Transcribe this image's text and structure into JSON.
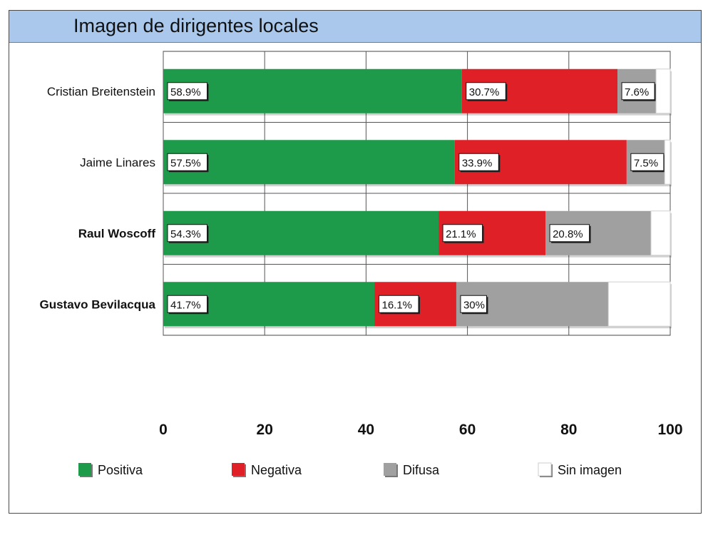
{
  "chart_data": {
    "type": "bar",
    "orientation": "horizontal",
    "stacked": true,
    "title": "Imagen de dirigentes locales",
    "categories": [
      "Cristian Breitenstein",
      "Jaime Linares",
      "Raul Woscoff",
      "Gustavo Bevilacqua"
    ],
    "series": [
      {
        "name": "Positiva",
        "color": "#1e9a4b",
        "values": [
          58.9,
          57.5,
          54.3,
          41.7
        ],
        "labels": [
          "58.9%",
          "57.5%",
          "54.3%",
          "41.7%"
        ]
      },
      {
        "name": "Negativa",
        "color": "#e02027",
        "values": [
          30.7,
          33.9,
          21.1,
          16.1
        ],
        "labels": [
          "30.7%",
          "33.9%",
          "21.1%",
          "16.1%"
        ]
      },
      {
        "name": "Difusa",
        "color": "#a0a0a0",
        "values": [
          7.6,
          7.5,
          20.8,
          30
        ],
        "labels": [
          "7.6%",
          "7.5%",
          "20.8%",
          "30%"
        ]
      },
      {
        "name": "Sin imagen",
        "color": "#ffffff",
        "values": [
          2.8,
          1.1,
          3.8,
          12.2
        ],
        "labels": [
          "",
          "",
          "",
          ""
        ]
      }
    ],
    "xlim": [
      0,
      100
    ],
    "xticks": [
      0,
      20,
      40,
      60,
      80,
      100
    ],
    "xtick_labels": [
      "0",
      "20",
      "40",
      "60",
      "80",
      "100"
    ],
    "grid": true,
    "legend_position": "bottom"
  }
}
